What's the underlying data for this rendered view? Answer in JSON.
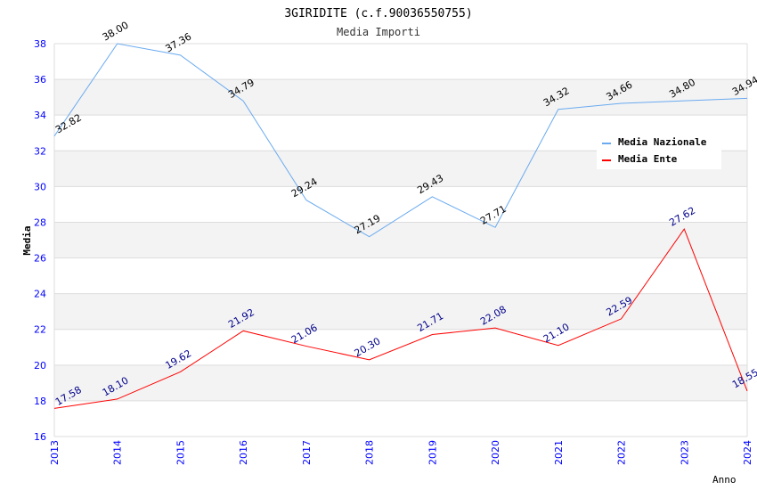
{
  "chart_data": {
    "type": "line",
    "title": "3GIRIDITE (c.f.90036550755)",
    "subtitle": "Media Importi",
    "xlabel": "Anno",
    "ylabel": "Media",
    "ylim": [
      16,
      38
    ],
    "yticks": [
      16,
      18,
      20,
      22,
      24,
      26,
      28,
      30,
      32,
      34,
      36,
      38
    ],
    "x": [
      "2013",
      "2014",
      "2015",
      "2016",
      "2017",
      "2018",
      "2019",
      "2020",
      "2021",
      "2022",
      "2023",
      "2024"
    ],
    "legend_position": "top-right",
    "series": [
      {
        "name": "Media Nazionale",
        "color": "#6aaaf0",
        "label_color": "#000000",
        "values": [
          32.82,
          38.0,
          37.36,
          34.79,
          29.24,
          27.19,
          29.43,
          27.71,
          34.32,
          34.66,
          34.8,
          34.94
        ]
      },
      {
        "name": "Media Ente",
        "color": "#ff0000",
        "label_color": "#00008b",
        "values": [
          17.58,
          18.1,
          19.62,
          21.92,
          21.06,
          20.3,
          21.71,
          22.08,
          21.1,
          22.59,
          27.62,
          18.55
        ]
      }
    ]
  }
}
